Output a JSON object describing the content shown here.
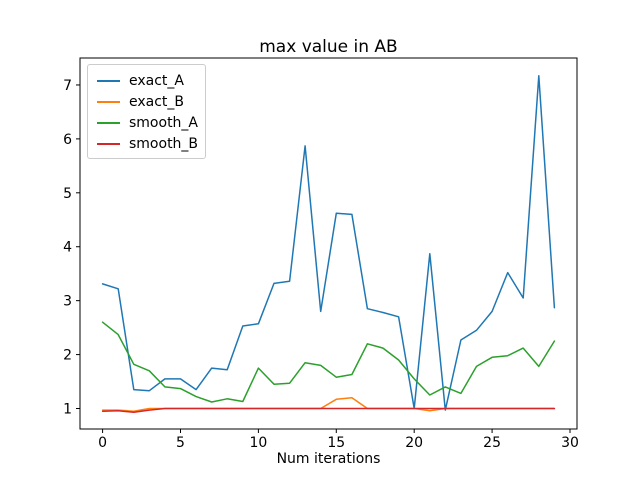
{
  "chart_data": {
    "type": "line",
    "title": "max value in AB",
    "xlabel": "Num iterations",
    "ylabel": "",
    "x": [
      0,
      1,
      2,
      3,
      4,
      5,
      6,
      7,
      8,
      9,
      10,
      11,
      12,
      13,
      14,
      15,
      16,
      17,
      18,
      19,
      20,
      21,
      22,
      23,
      24,
      25,
      26,
      27,
      28,
      29
    ],
    "series": [
      {
        "name": "exact_A",
        "color": "#1f77b4",
        "values": [
          3.31,
          3.22,
          1.35,
          1.33,
          1.55,
          1.55,
          1.35,
          1.75,
          1.72,
          2.53,
          2.57,
          3.32,
          3.36,
          5.87,
          2.8,
          4.62,
          4.6,
          2.85,
          2.78,
          2.7,
          1.0,
          3.87,
          0.97,
          2.27,
          2.45,
          2.8,
          3.52,
          3.05,
          7.17,
          2.87
        ]
      },
      {
        "name": "exact_B",
        "color": "#ff7f0e",
        "values": [
          0.97,
          0.97,
          0.95,
          1.0,
          1.0,
          1.0,
          1.0,
          1.0,
          1.0,
          1.0,
          1.0,
          1.0,
          1.0,
          1.0,
          1.0,
          1.17,
          1.2,
          1.0,
          1.0,
          1.0,
          1.0,
          0.96,
          1.0,
          1.0,
          1.0,
          1.0,
          1.0,
          1.0,
          1.0,
          1.0
        ]
      },
      {
        "name": "smooth_A",
        "color": "#2ca02c",
        "values": [
          2.6,
          2.37,
          1.82,
          1.7,
          1.4,
          1.37,
          1.22,
          1.12,
          1.18,
          1.13,
          1.75,
          1.45,
          1.47,
          1.85,
          1.8,
          1.58,
          1.63,
          2.2,
          2.12,
          1.9,
          1.55,
          1.25,
          1.4,
          1.28,
          1.78,
          1.95,
          1.98,
          2.12,
          1.78,
          2.25
        ]
      },
      {
        "name": "smooth_B",
        "color": "#d62728",
        "values": [
          0.95,
          0.96,
          0.93,
          0.97,
          1.0,
          1.0,
          1.0,
          1.0,
          1.0,
          1.0,
          1.0,
          1.0,
          1.0,
          1.0,
          1.0,
          1.0,
          1.0,
          1.0,
          1.0,
          1.0,
          1.0,
          1.0,
          1.0,
          1.0,
          1.0,
          1.0,
          1.0,
          1.0,
          1.0,
          1.0
        ]
      }
    ],
    "xticks": [
      0,
      5,
      10,
      15,
      20,
      25,
      30
    ],
    "yticks": [
      1,
      2,
      3,
      4,
      5,
      6,
      7
    ],
    "xlim": [
      -1.45,
      30.45
    ],
    "ylim": [
      0.62,
      7.5
    ],
    "grid": false,
    "legend_position": "upper left"
  }
}
